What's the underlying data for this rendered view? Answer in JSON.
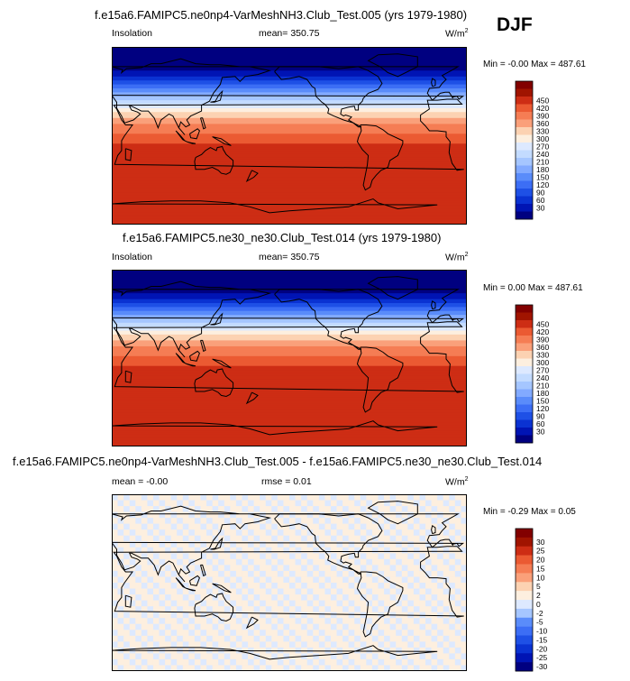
{
  "season": "DJF",
  "chart_data": [
    {
      "type": "heatmap",
      "title": "f.e15a6.FAMIPC5.ne0np4-VarMeshNH3.Club_Test.005 (yrs 1979-1980)",
      "left_label": "Insolation",
      "center_label": "mean= 350.75",
      "units": "W/m",
      "units_exp": "2",
      "minmax": "Min = -0.00 Max = 487.61",
      "contour_levels": [
        30,
        60,
        90,
        120,
        150,
        180,
        210,
        240,
        270,
        300,
        330,
        360,
        390,
        420,
        450
      ],
      "colorbar_labels": [
        "450",
        "420",
        "390",
        "360",
        "330",
        "300",
        "270",
        "240",
        "210",
        "180",
        "150",
        "120",
        "90",
        "60",
        "30"
      ],
      "colors": [
        "#000080",
        "#0014b4",
        "#0a32d2",
        "#1e50e6",
        "#3c6ef5",
        "#5a8cfa",
        "#82aaff",
        "#a5c6ff",
        "#c3dbff",
        "#dde9ff",
        "#fdefdf",
        "#fcd2b2",
        "#faa07a",
        "#f57d54",
        "#eb5a32",
        "#cd2d14",
        "#a01400",
        "#820000"
      ],
      "profile_lat": [
        90,
        80,
        70,
        60,
        50,
        40,
        30,
        20,
        10,
        0,
        -10,
        -20,
        -30,
        -40,
        -50,
        -60,
        -65,
        -70,
        -80,
        -90
      ],
      "profile_val": [
        0,
        0,
        8,
        55,
        135,
        215,
        290,
        350,
        395,
        430,
        455,
        470,
        478,
        482,
        480,
        478,
        482,
        480,
        487.61,
        487
      ]
    },
    {
      "type": "heatmap",
      "title": "f.e15a6.FAMIPC5.ne30_ne30.Club_Test.014 (yrs 1979-1980)",
      "left_label": "Insolation",
      "center_label": "mean= 350.75",
      "units": "W/m",
      "units_exp": "2",
      "minmax": "Min =  0.00 Max = 487.61",
      "contour_levels": [
        30,
        60,
        90,
        120,
        150,
        180,
        210,
        240,
        270,
        300,
        330,
        360,
        390,
        420,
        450
      ],
      "colorbar_labels": [
        "450",
        "420",
        "390",
        "360",
        "330",
        "300",
        "270",
        "240",
        "210",
        "180",
        "150",
        "120",
        "90",
        "60",
        "30"
      ],
      "colors": [
        "#000080",
        "#0014b4",
        "#0a32d2",
        "#1e50e6",
        "#3c6ef5",
        "#5a8cfa",
        "#82aaff",
        "#a5c6ff",
        "#c3dbff",
        "#dde9ff",
        "#fdefdf",
        "#fcd2b2",
        "#faa07a",
        "#f57d54",
        "#eb5a32",
        "#cd2d14",
        "#a01400",
        "#820000"
      ],
      "profile_lat": [
        90,
        80,
        70,
        60,
        50,
        40,
        30,
        20,
        10,
        0,
        -10,
        -20,
        -30,
        -40,
        -50,
        -60,
        -65,
        -70,
        -80,
        -90
      ],
      "profile_val": [
        0,
        0,
        8,
        55,
        135,
        215,
        290,
        350,
        395,
        430,
        455,
        470,
        478,
        482,
        480,
        478,
        482,
        480,
        487.61,
        487
      ]
    },
    {
      "type": "heatmap",
      "title": "f.e15a6.FAMIPC5.ne0np4-VarMeshNH3.Club_Test.005 - f.e15a6.FAMIPC5.ne30_ne30.Club_Test.014",
      "left_label": "mean = -0.00",
      "center_label": "rmse =   0.01",
      "units": "W/m",
      "units_exp": "2",
      "minmax": "Min = -0.29 Max =   0.05",
      "contour_levels": [
        -30,
        -25,
        -20,
        -15,
        -10,
        -5,
        -2,
        0,
        2,
        5,
        10,
        15,
        20,
        25,
        30
      ],
      "colorbar_labels": [
        "30",
        "25",
        "20",
        "15",
        "10",
        "5",
        "2",
        "0",
        "-2",
        "-5",
        "-10",
        "-15",
        "-20",
        "-25",
        "-30"
      ],
      "colors": [
        "#000080",
        "#0014b4",
        "#0a32d2",
        "#1e50e6",
        "#3c6ef5",
        "#5a8cfa",
        "#a5c6ff",
        "#dde9ff",
        "#fdefdf",
        "#fcd2b2",
        "#faa07a",
        "#f57d54",
        "#eb5a32",
        "#cd2d14",
        "#a01400",
        "#820000"
      ],
      "field_values": [
        -0.01,
        0.01
      ]
    }
  ]
}
